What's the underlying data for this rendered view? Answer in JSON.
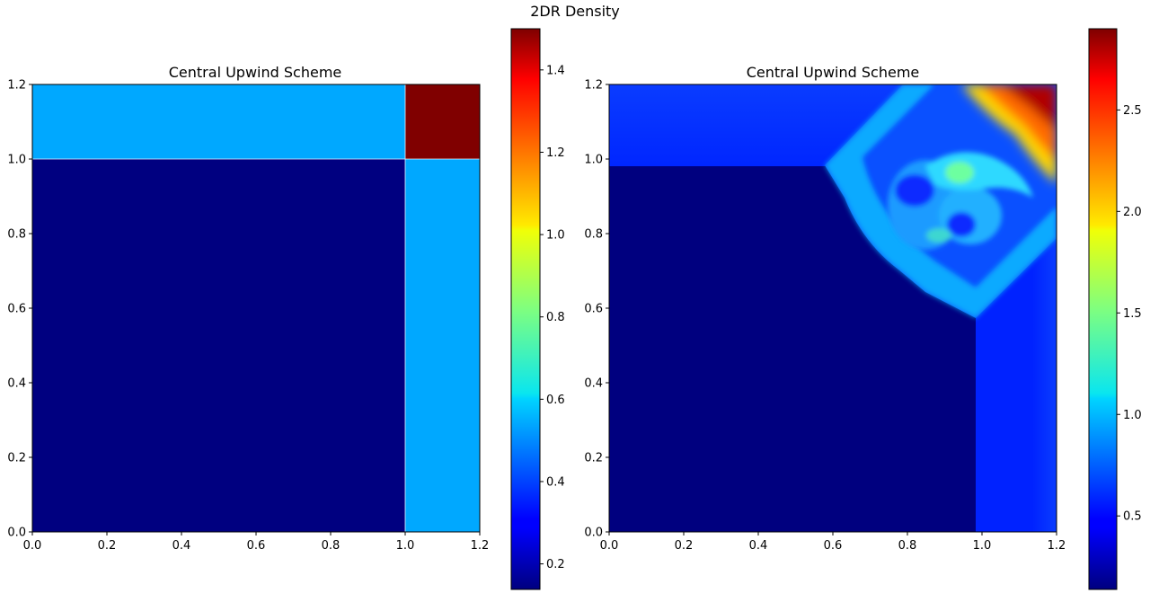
{
  "figure": {
    "suptitle": "2DR Density"
  },
  "chart_data": [
    {
      "type": "heatmap",
      "title": "Central Upwind Scheme",
      "xlabel": "",
      "ylabel": "",
      "xlim": [
        0,
        1.2
      ],
      "ylim": [
        0,
        1.2
      ],
      "x_ticks": [
        "0.0",
        "0.2",
        "0.4",
        "0.6",
        "0.8",
        "1.0",
        "1.2"
      ],
      "y_ticks": [
        "0.0",
        "0.2",
        "0.4",
        "0.6",
        "0.8",
        "1.0",
        "1.2"
      ],
      "colormap": "jet",
      "colorbar": {
        "range": [
          0.138,
          1.5
        ],
        "ticks": [
          "0.2",
          "0.4",
          "0.6",
          "0.8",
          "1.0",
          "1.2",
          "1.4"
        ]
      },
      "regions": [
        {
          "x": [
            0,
            1.0
          ],
          "y": [
            0,
            1.0
          ],
          "value": 0.138
        },
        {
          "x": [
            0,
            1.0
          ],
          "y": [
            1.0,
            1.2
          ],
          "value": 0.5323
        },
        {
          "x": [
            1.0,
            1.2
          ],
          "y": [
            0,
            1.0
          ],
          "value": 0.5323
        },
        {
          "x": [
            1.0,
            1.2
          ],
          "y": [
            1.0,
            1.2
          ],
          "value": 1.5
        }
      ]
    },
    {
      "type": "heatmap",
      "title": "Central Upwind Scheme",
      "xlabel": "",
      "ylabel": "",
      "xlim": [
        0,
        1.2
      ],
      "ylim": [
        0,
        1.2
      ],
      "x_ticks": [
        "0.0",
        "0.2",
        "0.4",
        "0.6",
        "0.8",
        "1.0",
        "1.2"
      ],
      "y_ticks": [
        "0.0",
        "0.2",
        "0.4",
        "0.6",
        "0.8",
        "1.0",
        "1.2"
      ],
      "colormap": "jet",
      "colorbar": {
        "range": [
          0.138,
          2.9
        ],
        "ticks": [
          "0.5",
          "1.0",
          "1.5",
          "2.0",
          "2.5"
        ]
      },
      "regions": [
        {
          "x": [
            0,
            0.98
          ],
          "y": [
            0,
            0.98
          ],
          "value": 0.138
        },
        {
          "x": [
            0,
            0.98
          ],
          "y": [
            0.98,
            1.2
          ],
          "value": 0.4
        },
        {
          "x": [
            0.98,
            1.2
          ],
          "y": [
            0,
            0.98
          ],
          "value": 0.4
        },
        {
          "x": [
            0.85,
            1.2
          ],
          "y": [
            0.9,
            1.2
          ],
          "value": 2.8
        }
      ]
    }
  ]
}
